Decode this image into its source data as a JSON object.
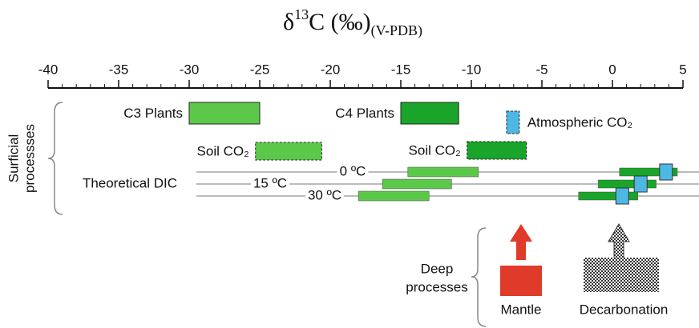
{
  "chart_data": {
    "type": "range",
    "title_parts": [
      "δ",
      "13",
      "C (‰)",
      "(V-PDB)"
    ],
    "xlim": [
      -40,
      5
    ],
    "xticks": [
      -40,
      -35,
      -30,
      -25,
      -20,
      -15,
      -10,
      -5,
      0,
      5
    ],
    "group_label": "Surficial processses",
    "bars": [
      {
        "name": "C3 Plants",
        "low": -30,
        "high": -25,
        "color": "#5cc84a",
        "dashed": false
      },
      {
        "name": "C4 Plants",
        "low": -15,
        "high": -10.9,
        "color": "#1aa52a",
        "dashed": false
      },
      {
        "name": "Atmospheric CO₂",
        "low": -7.5,
        "high": -6.6,
        "color": "#4db8e3",
        "dashed": true
      },
      {
        "name": "Soil CO₂",
        "low": -25.3,
        "high": -20.6,
        "color": "#5cc84a",
        "dashed": true
      },
      {
        "name": "Soil CO₂",
        "low": -10.3,
        "high": -6.1,
        "color": "#1aa52a",
        "dashed": true
      }
    ],
    "dic_label": "Theoretical DIC",
    "dic_rows": [
      {
        "name": "0 ºC",
        "c3_low": -14.5,
        "c3_high": -9.5,
        "c4_low": 0.5,
        "c4_high": 4.6,
        "atm": 3.8
      },
      {
        "name": "15 ºC",
        "c3_low": -16.3,
        "c3_high": -11.4,
        "c4_low": -1.0,
        "c4_high": 3.1,
        "atm": 2.0
      },
      {
        "name": "30 ºC",
        "c3_low": -18,
        "c3_high": -13,
        "c4_low": -2.4,
        "c4_high": 1.8,
        "atm": 0.7
      }
    ],
    "c3_color": "#5cc84a",
    "c4_color": "#1aa52a",
    "atm_color": "#4db8e3",
    "deep_label": [
      "Deep",
      "processes"
    ],
    "deep_sources": [
      "Mantle",
      "Decarbonation"
    ]
  }
}
